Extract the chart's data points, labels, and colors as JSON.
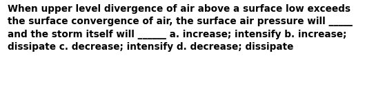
{
  "text": "When upper level divergence of air above a surface low exceeds\nthe surface convergence of air, the surface air pressure will _____\nand the storm itself will ______ a. increase; intensify b. increase;\ndissipate c. decrease; intensify d. decrease; dissipate",
  "background_color": "#ffffff",
  "text_color": "#000000",
  "font_size": 9.8,
  "font_family": "DejaVu Sans",
  "fig_width": 5.58,
  "fig_height": 1.26,
  "dpi": 100
}
